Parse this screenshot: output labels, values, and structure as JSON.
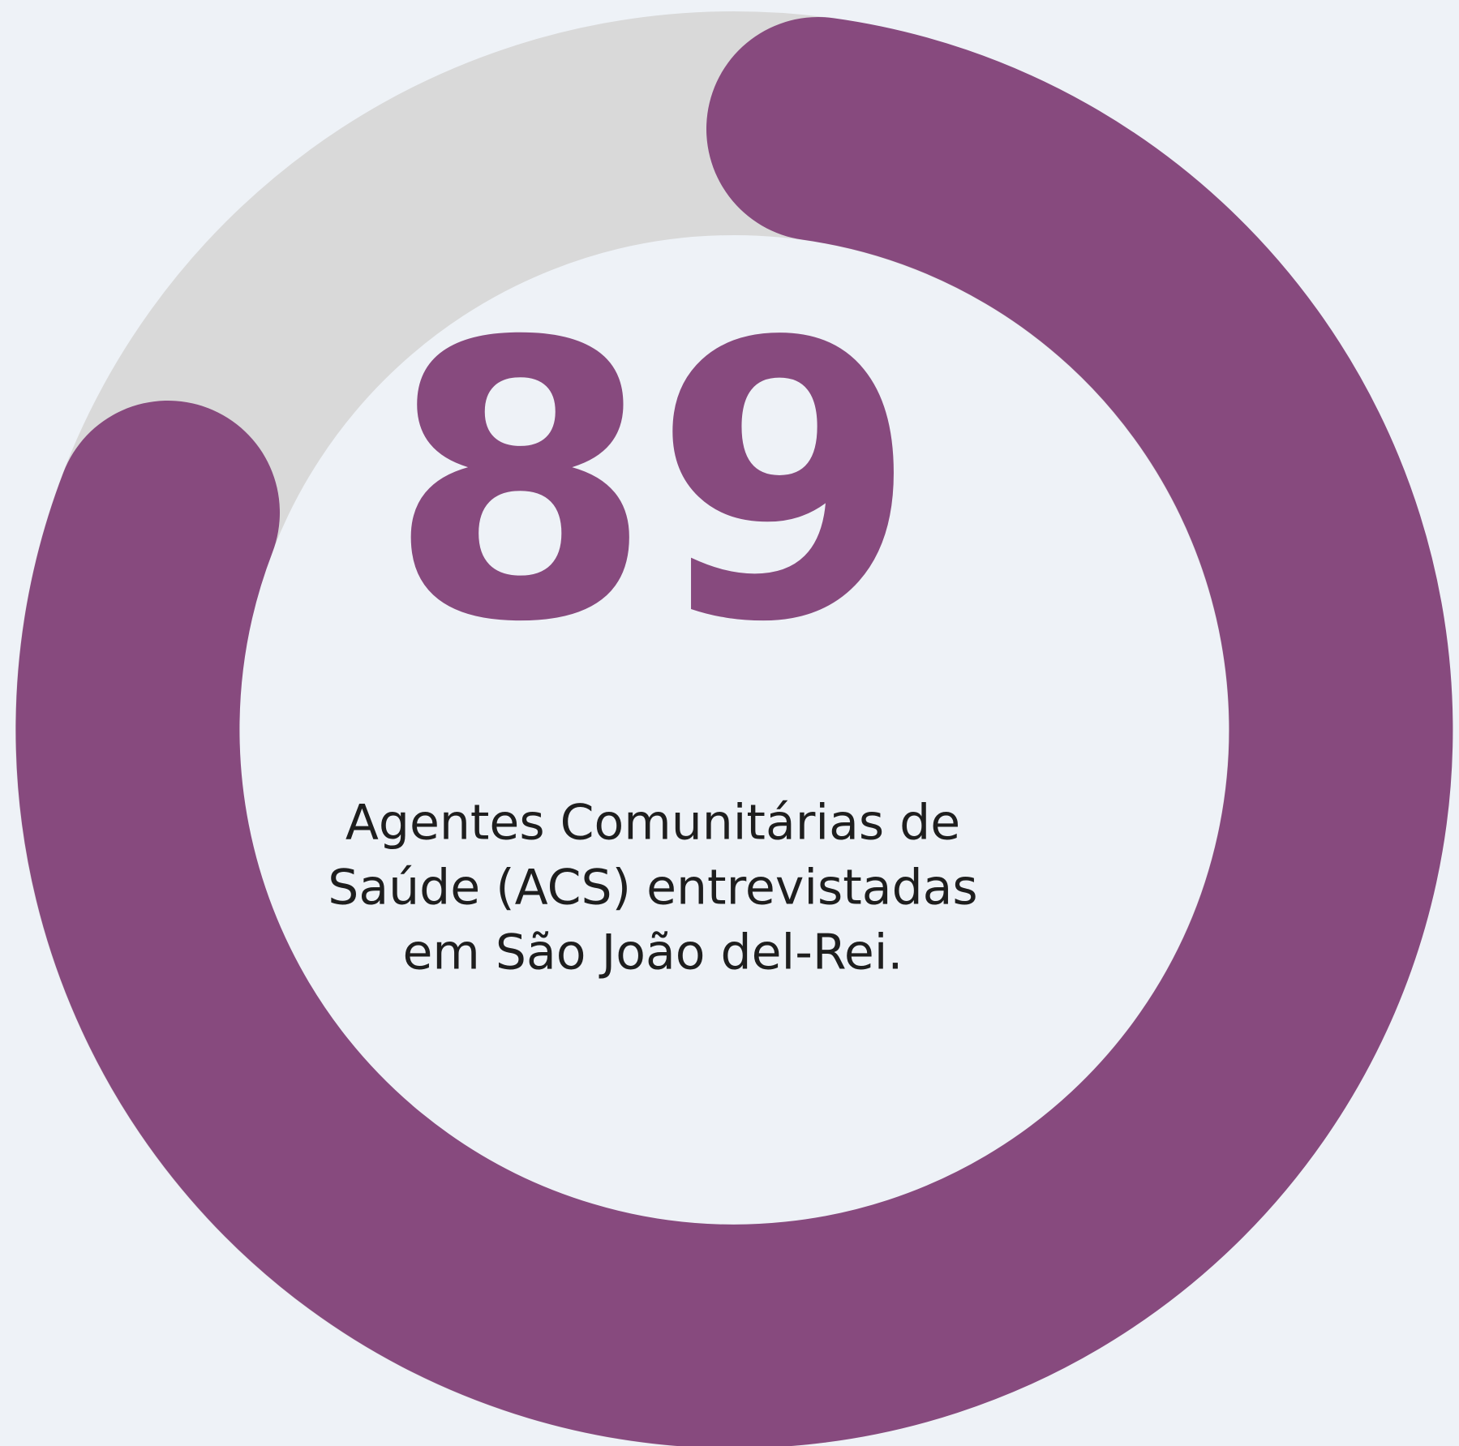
{
  "value": "89",
  "caption": [
    "Agentes Comunitárias de",
    "Saúde (ACS) entrevistadas",
    "em São João del-Rei."
  ]
}
